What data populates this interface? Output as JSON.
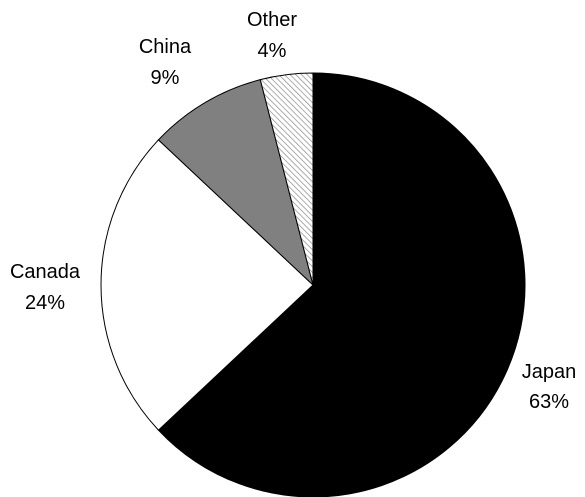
{
  "chart_data": {
    "type": "pie",
    "title": "",
    "start": "12 o'clock",
    "direction": "clockwise",
    "slices": [
      {
        "label": "Japan",
        "percent_label": "63%",
        "value": 63,
        "fill": "#000000",
        "pattern": "none"
      },
      {
        "label": "Canada",
        "percent_label": "24%",
        "value": 24,
        "fill": "#ffffff",
        "pattern": "none"
      },
      {
        "label": "China",
        "percent_label": "9%",
        "value": 9,
        "fill": "#808080",
        "pattern": "none"
      },
      {
        "label": "Other",
        "percent_label": "4%",
        "value": 4,
        "fill": "#ffffff",
        "pattern": "diagonal-hatch"
      }
    ]
  }
}
